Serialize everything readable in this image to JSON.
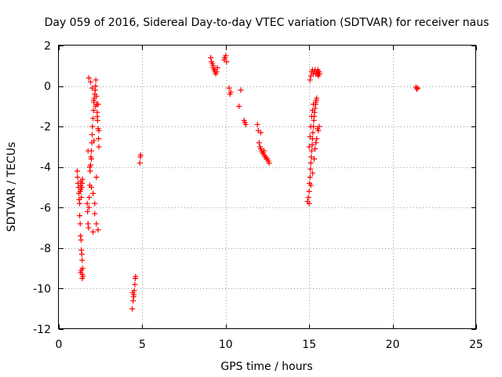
{
  "chart_data": {
    "type": "scatter",
    "title": "Day 059 of 2016, Sidereal Day-to-day VTEC variation (SDTVAR) for receiver naus",
    "xlabel": "GPS time / hours",
    "ylabel": "SDTVAR / TECUs",
    "xlim": [
      0,
      25
    ],
    "ylim": [
      -12,
      2
    ],
    "xticks": [
      0,
      5,
      10,
      15,
      20,
      25
    ],
    "yticks": [
      -12,
      -10,
      -8,
      -6,
      -4,
      -2,
      0,
      2
    ],
    "xtick_labels": [
      "0",
      "5",
      "10",
      "15",
      "20",
      "25"
    ],
    "ytick_labels": [
      "-12",
      "-10",
      "-8",
      "-6",
      "-4",
      "-2",
      "0",
      "2"
    ],
    "grid": true,
    "marker": "+",
    "color": "#ff0000",
    "series": [
      {
        "name": "SDTVAR",
        "x": [
          1.1,
          1.12,
          1.15,
          1.18,
          1.2,
          1.22,
          1.25,
          1.28,
          1.3,
          1.32,
          1.33,
          1.35,
          1.38,
          1.4,
          1.42,
          1.25,
          1.28,
          1.3,
          1.33,
          1.35,
          1.38,
          1.4,
          1.42,
          1.45,
          1.4,
          1.3,
          1.35,
          1.4,
          1.7,
          1.72,
          1.75,
          1.78,
          1.8,
          1.82,
          1.85,
          1.88,
          1.9,
          1.92,
          1.95,
          1.98,
          2.0,
          2.02,
          2.05,
          2.08,
          2.1,
          2.12,
          2.15,
          2.18,
          2.2,
          2.22,
          2.25,
          2.28,
          2.3,
          2.32,
          2.35,
          2.38,
          2.4,
          1.8,
          1.9,
          2.0,
          2.1,
          2.2,
          2.3,
          2.4,
          1.85,
          1.95,
          2.05,
          2.15,
          2.25,
          2.35,
          1.75,
          1.95,
          2.1,
          2.25,
          2.35,
          2.05,
          2.15,
          4.4,
          4.45,
          4.5,
          4.52,
          4.55,
          4.58,
          4.6,
          4.48,
          4.42,
          4.85,
          4.88,
          4.9,
          9.1,
          9.15,
          9.2,
          9.25,
          9.3,
          9.35,
          9.4,
          9.45,
          9.5,
          9.25,
          9.35,
          9.9,
          9.95,
          10.0,
          10.05,
          10.2,
          10.25,
          10.3,
          10.8,
          10.9,
          11.1,
          11.15,
          11.2,
          11.9,
          11.95,
          12.0,
          12.05,
          12.1,
          12.15,
          12.2,
          12.25,
          12.3,
          12.35,
          12.4,
          12.45,
          12.5,
          12.55,
          12.6,
          12.1,
          12.3,
          14.9,
          14.95,
          15.0,
          15.02,
          15.05,
          15.08,
          15.1,
          15.12,
          15.15,
          15.18,
          15.2,
          15.22,
          15.25,
          15.28,
          15.3,
          15.32,
          15.35,
          15.38,
          15.4,
          15.42,
          15.45,
          15.48,
          15.5,
          15.52,
          15.55,
          15.58,
          15.6,
          15.62,
          15.05,
          15.1,
          15.15,
          15.2,
          15.25,
          15.3,
          15.35,
          15.4,
          15.45,
          15.5,
          15.55,
          15.0,
          15.1,
          15.2,
          15.3,
          15.4,
          15.5,
          15.0,
          15.05,
          15.1,
          15.15,
          15.2,
          15.25,
          15.35,
          15.45,
          15.55,
          15.6,
          21.4,
          21.45,
          21.5
        ],
        "y": [
          -4.2,
          -4.5,
          -4.8,
          -5.0,
          -5.3,
          -5.6,
          -5.8,
          -5.2,
          -4.9,
          -4.7,
          -5.1,
          -5.5,
          -5.0,
          -4.8,
          -4.6,
          -6.4,
          -6.8,
          -7.4,
          -7.6,
          -8.1,
          -8.3,
          -8.6,
          -9.0,
          -9.4,
          -9.5,
          -9.2,
          -9.1,
          -9.3,
          -5.8,
          -6.2,
          -6.8,
          -7.0,
          -6.0,
          -5.5,
          -4.9,
          -4.2,
          -3.9,
          -3.5,
          -3.2,
          -2.8,
          -2.4,
          -2.0,
          -1.6,
          -1.2,
          -0.8,
          -0.6,
          -0.4,
          -0.2,
          0.0,
          0.3,
          -0.5,
          -0.9,
          -1.3,
          -1.7,
          -2.1,
          -2.6,
          -3.0,
          0.4,
          0.2,
          -0.1,
          -0.7,
          -1.0,
          -1.5,
          -2.2,
          -4.0,
          -5.0,
          -5.3,
          -6.3,
          -6.8,
          -7.1,
          -3.2,
          -3.6,
          -2.7,
          -4.5,
          -0.9,
          -7.2,
          -5.8,
          -11.0,
          -10.6,
          -10.3,
          -10.1,
          -9.8,
          -9.5,
          -9.4,
          -10.4,
          -10.2,
          -3.8,
          -3.5,
          -3.4,
          1.4,
          1.2,
          1.1,
          0.9,
          0.8,
          0.7,
          0.6,
          0.7,
          0.9,
          1.0,
          0.8,
          1.3,
          1.4,
          1.5,
          1.2,
          -0.1,
          -0.4,
          -0.3,
          -1.0,
          -0.2,
          -1.7,
          -1.8,
          -1.9,
          -1.9,
          -2.2,
          -2.8,
          -3.0,
          -3.1,
          -3.2,
          -3.3,
          -3.3,
          -3.4,
          -3.5,
          -3.5,
          -3.6,
          -3.6,
          -3.7,
          -3.8,
          -2.3,
          -3.2,
          -5.7,
          -5.5,
          -5.2,
          -4.8,
          -4.5,
          -4.1,
          -3.8,
          -3.5,
          -3.2,
          -2.9,
          -2.6,
          -2.3,
          -2.0,
          -1.7,
          -1.5,
          -1.3,
          -1.1,
          -0.9,
          -0.8,
          -0.7,
          -0.6,
          0.6,
          0.7,
          0.8,
          0.7,
          0.6,
          0.7,
          0.6,
          0.3,
          0.5,
          0.7,
          0.8,
          0.6,
          0.7,
          0.8,
          0.6,
          0.7,
          0.6,
          0.5,
          -5.8,
          -4.9,
          -4.3,
          -3.6,
          -2.8,
          -2.1,
          -3.0,
          -2.5,
          -2.0,
          -1.5,
          -1.2,
          -0.9,
          -3.1,
          -2.6,
          -2.2,
          -2.0,
          -0.05,
          -0.15,
          -0.1
        ]
      }
    ]
  }
}
